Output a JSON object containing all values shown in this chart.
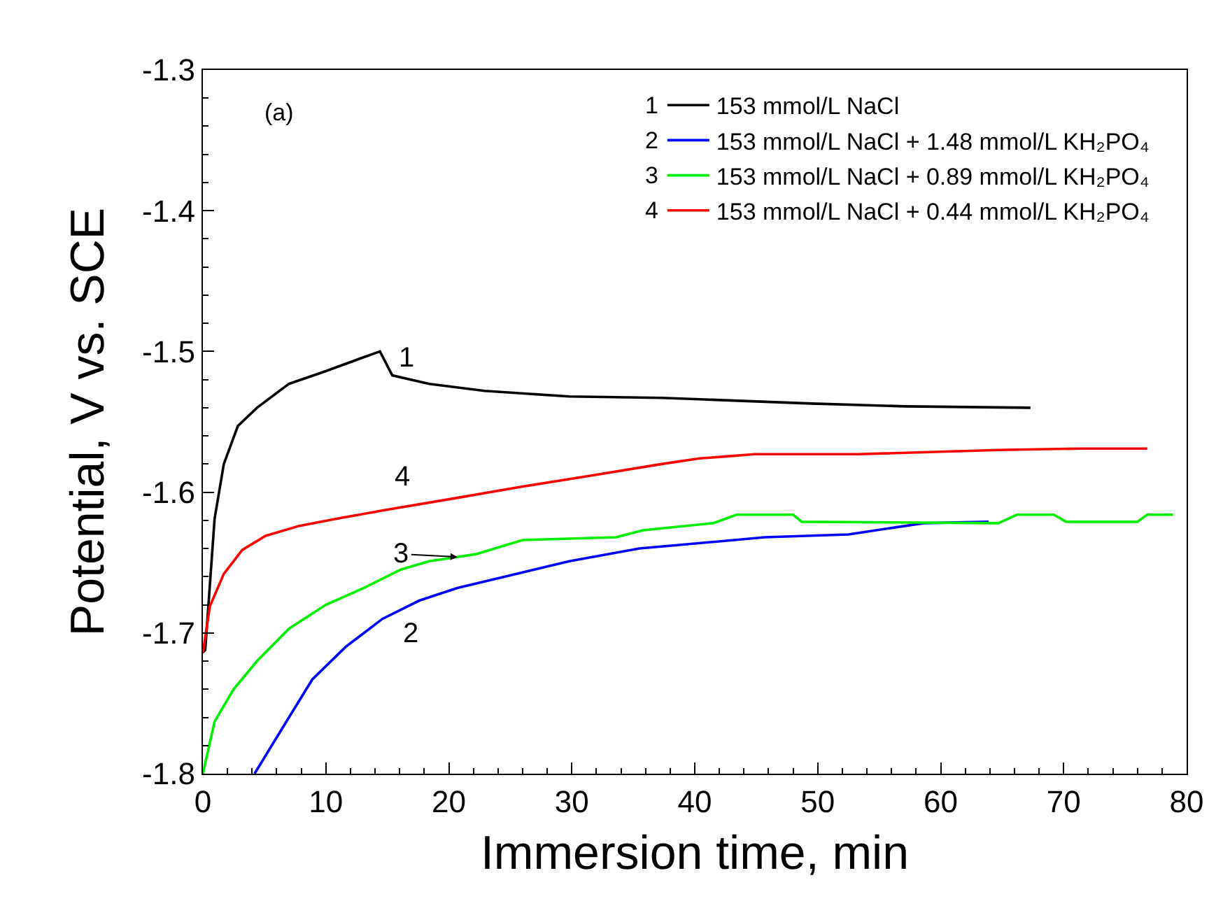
{
  "chart_data": {
    "type": "line",
    "xlabel": "Immersion time, min",
    "ylabel": "Potential, V vs. SCE",
    "xlim": [
      0,
      80
    ],
    "xticks": [
      0,
      10,
      20,
      30,
      40,
      50,
      60,
      70,
      80
    ],
    "ylim": [
      -1.8,
      -1.3
    ],
    "yticks": [
      -1.8,
      -1.7,
      -1.6,
      -1.5,
      -1.4,
      -1.3
    ],
    "grid": false,
    "legend": "top right",
    "marker": "none",
    "line_style": "solid",
    "series": [
      {
        "name": "153 mmol/L NaCl",
        "color": "#000000",
        "x": [
          0,
          0.19,
          0.95,
          1.7,
          2.84,
          4.4,
          7.0,
          10.0,
          13.1,
          14.4,
          15.4,
          18.4,
          22.9,
          29.8,
          37.3,
          40.4,
          49.5,
          57.1,
          67.3
        ],
        "values": [
          -1.714,
          -1.712,
          -1.619,
          -1.58,
          -1.553,
          -1.54,
          -1.523,
          -1.514,
          -1.504,
          -1.5,
          -1.517,
          -1.523,
          -1.528,
          -1.532,
          -1.533,
          -1.534,
          -1.537,
          -1.539,
          -1.54
        ]
      },
      {
        "name": "153 mmol/L NaCl + 1.48 mmol/L KH₂PO₄",
        "color": "#0000ff",
        "x": [
          4.2,
          7.0,
          8.9,
          11.6,
          14.6,
          17.6,
          20.7,
          26.0,
          29.8,
          35.5,
          38.1,
          45.7,
          52.5,
          58.6,
          63.9
        ],
        "values": [
          -1.8,
          -1.76,
          -1.733,
          -1.71,
          -1.69,
          -1.677,
          -1.668,
          -1.657,
          -1.649,
          -1.64,
          -1.638,
          -1.632,
          -1.63,
          -1.622,
          -1.621
        ]
      },
      {
        "name": "153 mmol/L NaCl + 0.89 mmol/L KH₂PO₄",
        "color": "#00ee00",
        "x": [
          0,
          0.95,
          2.5,
          4.4,
          7.0,
          10.0,
          13.1,
          16.1,
          18.4,
          20.7,
          22.2,
          26.0,
          33.6,
          35.8,
          41.5,
          43.4,
          48.0,
          48.7,
          64.7,
          66.2,
          69.2,
          70.2,
          76.0,
          76.8,
          78.9
        ],
        "values": [
          -1.8,
          -1.763,
          -1.74,
          -1.72,
          -1.697,
          -1.68,
          -1.668,
          -1.655,
          -1.649,
          -1.646,
          -1.644,
          -1.634,
          -1.632,
          -1.627,
          -1.622,
          -1.616,
          -1.616,
          -1.621,
          -1.622,
          -1.616,
          -1.616,
          -1.621,
          -1.621,
          -1.616,
          -1.616
        ]
      },
      {
        "name": "153 mmol/L NaCl + 0.44 mmol/L KH₂PO₄",
        "color": "#ff0000",
        "x": [
          0,
          0.57,
          1.7,
          3.2,
          5.1,
          7.8,
          10.8,
          14.6,
          20.7,
          26.0,
          31.7,
          37.3,
          40.4,
          44.9,
          53.3,
          64.7,
          71.5,
          76.8
        ],
        "values": [
          -1.714,
          -1.681,
          -1.658,
          -1.641,
          -1.631,
          -1.624,
          -1.619,
          -1.613,
          -1.604,
          -1.596,
          -1.588,
          -1.58,
          -1.576,
          -1.573,
          -1.573,
          -1.57,
          -1.569,
          -1.569
        ]
      }
    ],
    "annotations": [
      {
        "text": "1",
        "x": 15.4,
        "y": -1.517
      },
      {
        "text": "2",
        "x": 17.6,
        "y": -1.677
      },
      {
        "text": "3",
        "x": 20.7,
        "y": -1.646
      },
      {
        "text": "4",
        "x": 14.6,
        "y": -1.613
      },
      "(a)"
    ]
  }
}
